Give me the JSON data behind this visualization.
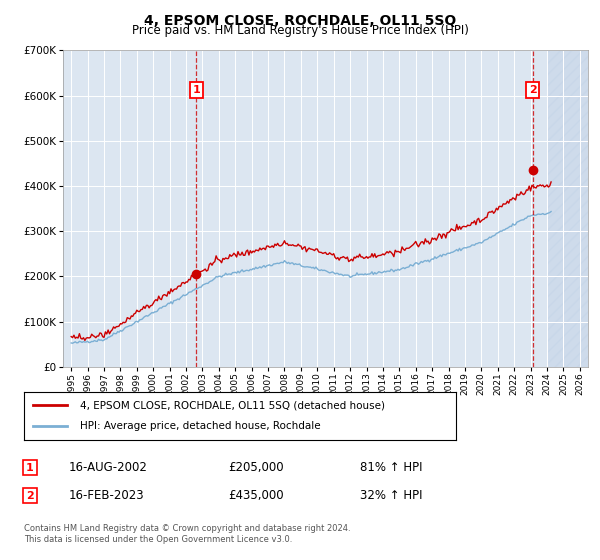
{
  "title": "4, EPSOM CLOSE, ROCHDALE, OL11 5SQ",
  "subtitle": "Price paid vs. HM Land Registry's House Price Index (HPI)",
  "legend_line1": "4, EPSOM CLOSE, ROCHDALE, OL11 5SQ (detached house)",
  "legend_line2": "HPI: Average price, detached house, Rochdale",
  "annotation1_label": "1",
  "annotation1_date": "16-AUG-2002",
  "annotation1_price": "£205,000",
  "annotation1_hpi": "81% ↑ HPI",
  "annotation2_label": "2",
  "annotation2_date": "16-FEB-2023",
  "annotation2_price": "£435,000",
  "annotation2_hpi": "32% ↑ HPI",
  "footnote1": "Contains HM Land Registry data © Crown copyright and database right 2024.",
  "footnote2": "This data is licensed under the Open Government Licence v3.0.",
  "sale1_year": 2002.62,
  "sale1_price": 205000,
  "sale2_year": 2023.12,
  "sale2_price": 435000,
  "hatch_start": 2024.0,
  "xlim": [
    1994.5,
    2026.5
  ],
  "ylim": [
    0,
    700000
  ],
  "plot_bg_color": "#dce6f1",
  "line_color_red": "#cc0000",
  "line_color_blue": "#7bafd4",
  "hatch_color": "#c5d5e8"
}
